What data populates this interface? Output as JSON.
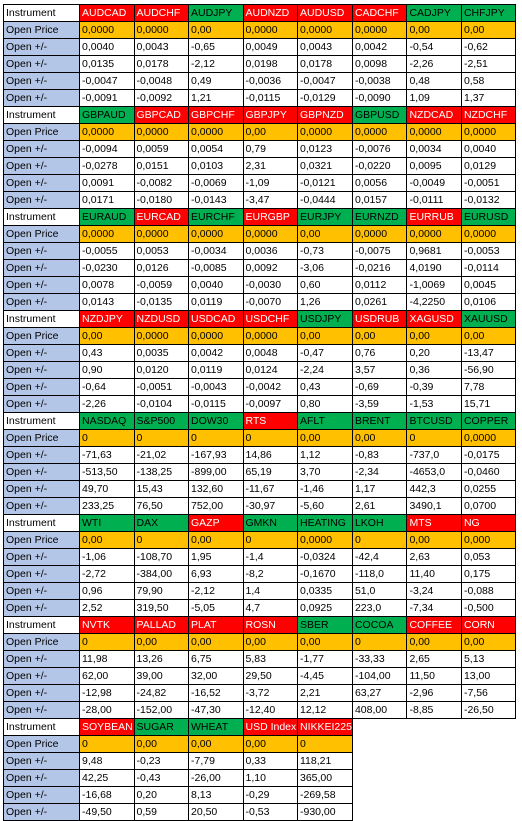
{
  "colors": {
    "up": "#00b050",
    "down": "#ff0000",
    "open_price": "#ffc000",
    "label": "#b4c6e7"
  },
  "labels": {
    "instrument": "Instrument",
    "open_price": "Open Price",
    "open_delta": "Open +/-"
  },
  "blocks": [
    {
      "instruments": [
        {
          "name": "AUDCAD",
          "dir": "down"
        },
        {
          "name": "AUDCHF",
          "dir": "down"
        },
        {
          "name": "AUDJPY",
          "dir": "up"
        },
        {
          "name": "AUDNZD",
          "dir": "down"
        },
        {
          "name": "AUDUSD",
          "dir": "down"
        },
        {
          "name": "CADCHF",
          "dir": "down"
        },
        {
          "name": "CADJPY",
          "dir": "up"
        },
        {
          "name": "CHFJPY",
          "dir": "up"
        }
      ],
      "open_price": [
        "0,0000",
        "0,0000",
        "0,00",
        "0,0000",
        "0,0000",
        "0,0000",
        "0,00",
        "0,00"
      ],
      "deltas": [
        [
          "0,0040",
          "0,0043",
          "-0,65",
          "0,0049",
          "0,0043",
          "0,0042",
          "-0,54",
          "-0,62"
        ],
        [
          "0,0135",
          "0,0178",
          "-2,12",
          "0,0198",
          "0,0178",
          "0,0098",
          "-2,26",
          "-2,51"
        ],
        [
          "-0,0047",
          "-0,0048",
          "0,49",
          "-0,0036",
          "-0,0047",
          "-0,0038",
          "0,48",
          "0,58"
        ],
        [
          "-0,0091",
          "-0,0092",
          "1,21",
          "-0,0115",
          "-0,0129",
          "-0,0090",
          "1,09",
          "1,37"
        ]
      ]
    },
    {
      "instruments": [
        {
          "name": "GBPAUD",
          "dir": "up"
        },
        {
          "name": "GBPCAD",
          "dir": "down"
        },
        {
          "name": "GBPCHF",
          "dir": "down"
        },
        {
          "name": "GBPJPY",
          "dir": "down"
        },
        {
          "name": "GBPNZD",
          "dir": "down"
        },
        {
          "name": "GBPUSD",
          "dir": "up"
        },
        {
          "name": "NZDCAD",
          "dir": "down"
        },
        {
          "name": "NZDCHF",
          "dir": "down"
        }
      ],
      "open_price": [
        "0,0000",
        "0,0000",
        "0,0000",
        "0,00",
        "0,0000",
        "0,0000",
        "0,0000",
        "0,0000"
      ],
      "deltas": [
        [
          "-0,0094",
          "0,0059",
          "0,0054",
          "0,79",
          "0,0123",
          "-0,0076",
          "0,0034",
          "0,0040"
        ],
        [
          "-0,0278",
          "0,0151",
          "0,0103",
          "2,31",
          "0,0321",
          "-0,0220",
          "0,0095",
          "0,0129"
        ],
        [
          "0,0091",
          "-0,0082",
          "-0,0069",
          "-1,09",
          "-0,0121",
          "0,0056",
          "-0,0049",
          "-0,0051"
        ],
        [
          "0,0171",
          "-0,0180",
          "-0,0143",
          "-3,47",
          "-0,0444",
          "0,0157",
          "-0,0111",
          "-0,0132"
        ]
      ]
    },
    {
      "instruments": [
        {
          "name": "EURAUD",
          "dir": "up"
        },
        {
          "name": "EURCAD",
          "dir": "down"
        },
        {
          "name": "EURCHF",
          "dir": "up"
        },
        {
          "name": "EURGBP",
          "dir": "down"
        },
        {
          "name": "EURJPY",
          "dir": "up"
        },
        {
          "name": "EURNZD",
          "dir": "up"
        },
        {
          "name": "EURRUB",
          "dir": "down"
        },
        {
          "name": "EURUSD",
          "dir": "up"
        }
      ],
      "open_price": [
        "0,0000",
        "0,0000",
        "0,0000",
        "0,0000",
        "0,00",
        "0,0000",
        "0,0000",
        "0,0000"
      ],
      "deltas": [
        [
          "-0,0055",
          "0,0053",
          "-0,0034",
          "0,0036",
          "-0,73",
          "-0,0075",
          "0,9681",
          "-0,0053"
        ],
        [
          "-0,0230",
          "0,0126",
          "-0,0085",
          "0,0092",
          "-3,06",
          "-0,0216",
          "4,0190",
          "-0,0114"
        ],
        [
          "0,0078",
          "-0,0059",
          "0,0040",
          "-0,0030",
          "0,60",
          "0,0112",
          "-1,0069",
          "0,0045"
        ],
        [
          "0,0143",
          "-0,0135",
          "0,0119",
          "-0,0070",
          "1,26",
          "0,0261",
          "-4,2250",
          "0,0106"
        ]
      ]
    },
    {
      "instruments": [
        {
          "name": "NZDJPY",
          "dir": "down"
        },
        {
          "name": "NZDUSD",
          "dir": "down"
        },
        {
          "name": "USDCAD",
          "dir": "down"
        },
        {
          "name": "USDCHF",
          "dir": "down"
        },
        {
          "name": "USDJPY",
          "dir": "up"
        },
        {
          "name": "USDRUB",
          "dir": "down"
        },
        {
          "name": "XAGUSD",
          "dir": "down"
        },
        {
          "name": "XAUUSD",
          "dir": "up"
        }
      ],
      "open_price": [
        "0,00",
        "0,0000",
        "0,0000",
        "0,0000",
        "0,00",
        "0,00",
        "0,00",
        "0,00"
      ],
      "deltas": [
        [
          "0,43",
          "0,0035",
          "0,0042",
          "0,0048",
          "-0,47",
          "0,76",
          "0,20",
          "-13,47"
        ],
        [
          "0,90",
          "0,0120",
          "0,0119",
          "0,0124",
          "-2,24",
          "3,57",
          "0,36",
          "-56,90"
        ],
        [
          "-0,64",
          "-0,0051",
          "-0,0043",
          "-0,0042",
          "0,43",
          "-0,69",
          "-0,39",
          "7,78"
        ],
        [
          "-2,26",
          "-0,0104",
          "-0,0115",
          "-0,0097",
          "0,80",
          "-3,59",
          "-1,53",
          "15,71"
        ]
      ]
    },
    {
      "instruments": [
        {
          "name": "NASDAQ",
          "dir": "up"
        },
        {
          "name": "S&P500",
          "dir": "up"
        },
        {
          "name": "DOW30",
          "dir": "up"
        },
        {
          "name": "RTS",
          "dir": "down"
        },
        {
          "name": "AFLT",
          "dir": "up"
        },
        {
          "name": "BRENT",
          "dir": "up"
        },
        {
          "name": "BTCUSD",
          "dir": "up"
        },
        {
          "name": "COPPER",
          "dir": "up"
        }
      ],
      "open_price": [
        "0",
        "0",
        "0",
        "0",
        "0,00",
        "0,00",
        "0",
        "0,0000"
      ],
      "deltas": [
        [
          "-71,63",
          "-21,02",
          "-167,93",
          "14,86",
          "1,12",
          "-0,83",
          "-737,0",
          "-0,0175"
        ],
        [
          "-513,50",
          "-138,25",
          "-899,00",
          "65,19",
          "3,70",
          "-2,34",
          "-4653,0",
          "-0,0460"
        ],
        [
          "49,70",
          "15,43",
          "132,60",
          "-11,67",
          "-1,46",
          "1,17",
          "442,3",
          "0,0255"
        ],
        [
          "233,25",
          "76,50",
          "752,00",
          "-30,97",
          "-5,60",
          "2,61",
          "3490,1",
          "0,0700"
        ]
      ]
    },
    {
      "instruments": [
        {
          "name": "WTI",
          "dir": "up"
        },
        {
          "name": "DAX",
          "dir": "up"
        },
        {
          "name": "GAZP",
          "dir": "down"
        },
        {
          "name": "GMKN",
          "dir": "up"
        },
        {
          "name": "HEATING",
          "dir": "up"
        },
        {
          "name": "LKOH",
          "dir": "up"
        },
        {
          "name": "MTS",
          "dir": "down"
        },
        {
          "name": "NG",
          "dir": "down"
        }
      ],
      "open_price": [
        "0,00",
        "0",
        "0,00",
        "0",
        "0,0000",
        "0",
        "0,00",
        "0,000"
      ],
      "deltas": [
        [
          "-1,06",
          "-108,70",
          "1,95",
          "-1,4",
          "-0,0324",
          "-42,4",
          "2,63",
          "0,053"
        ],
        [
          "-2,72",
          "-384,00",
          "6,93",
          "-8,2",
          "-0,1670",
          "-118,0",
          "11,40",
          "0,175"
        ],
        [
          "0,96",
          "79,90",
          "-2,12",
          "1,4",
          "0,0335",
          "51,0",
          "-3,24",
          "-0,088"
        ],
        [
          "2,52",
          "319,50",
          "-5,05",
          "4,7",
          "0,0925",
          "223,0",
          "-7,34",
          "-0,500"
        ]
      ]
    },
    {
      "instruments": [
        {
          "name": "NVTK",
          "dir": "down"
        },
        {
          "name": "PALLAD",
          "dir": "down"
        },
        {
          "name": "PLAT",
          "dir": "down"
        },
        {
          "name": "ROSN",
          "dir": "down"
        },
        {
          "name": "SBER",
          "dir": "up"
        },
        {
          "name": "COCOA",
          "dir": "up"
        },
        {
          "name": "COFFEE",
          "dir": "down"
        },
        {
          "name": "CORN",
          "dir": "down"
        }
      ],
      "open_price": [
        "0",
        "0,00",
        "0,00",
        "0,00",
        "0,00",
        "0",
        "0,00",
        "0,00"
      ],
      "deltas": [
        [
          "11,98",
          "13,26",
          "6,75",
          "5,83",
          "-1,77",
          "-33,33",
          "2,65",
          "5,13"
        ],
        [
          "62,00",
          "39,00",
          "32,00",
          "29,50",
          "-4,45",
          "-104,00",
          "11,50",
          "13,00"
        ],
        [
          "-12,98",
          "-24,82",
          "-16,52",
          "-3,72",
          "2,21",
          "63,27",
          "-2,96",
          "-7,56"
        ],
        [
          "-28,00",
          "-152,00",
          "-47,30",
          "-12,40",
          "12,12",
          "408,00",
          "-8,85",
          "-26,50"
        ]
      ]
    },
    {
      "instruments": [
        {
          "name": "SOYBEAN",
          "dir": "down"
        },
        {
          "name": "SUGAR",
          "dir": "up"
        },
        {
          "name": "WHEAT",
          "dir": "up"
        },
        {
          "name": "USD Index",
          "dir": "down"
        },
        {
          "name": "NIKKEI225",
          "dir": "down"
        }
      ],
      "open_price": [
        "0",
        "0,00",
        "0,00",
        "0,00",
        "0"
      ],
      "deltas": [
        [
          "9,48",
          "-0,23",
          "-7,79",
          "0,33",
          "118,21"
        ],
        [
          "42,25",
          "-0,43",
          "-26,00",
          "1,10",
          "365,00"
        ],
        [
          "-16,68",
          "0,20",
          "8,13",
          "-0,29",
          "-269,58"
        ],
        [
          "-49,50",
          "0,59",
          "20,50",
          "-0,53",
          "-930,00"
        ]
      ]
    }
  ]
}
